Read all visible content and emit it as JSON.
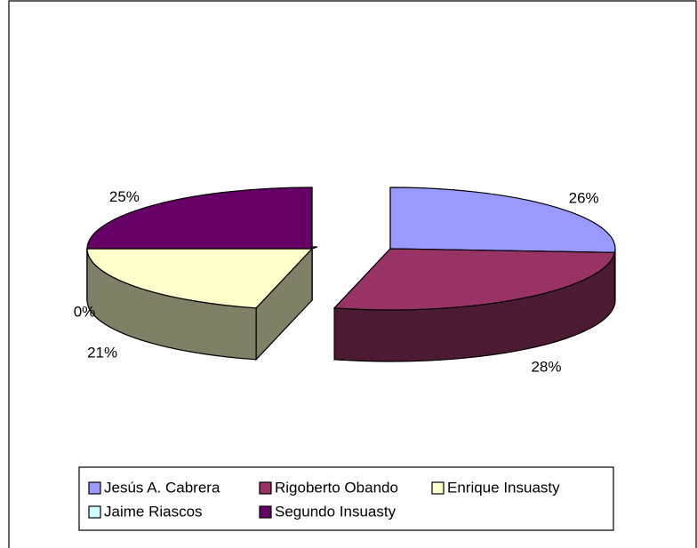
{
  "chart_data": {
    "type": "pie",
    "style": "3d-exploded",
    "legend_position": "bottom",
    "slices": [
      {
        "name": "Jesús A. Cabrera",
        "value": 26,
        "label": "26%",
        "color": "#9999FF"
      },
      {
        "name": "Rigoberto Obando",
        "value": 28,
        "label": "28%",
        "color": "#993366"
      },
      {
        "name": "Enrique Insuasty",
        "value": 21,
        "label": "21%",
        "color": "#FFFFCC"
      },
      {
        "name": "Jaime Riascos",
        "value": 0,
        "label": "0%",
        "color": "#CCFFFF"
      },
      {
        "name": "Segundo Insuasty",
        "value": 25,
        "label": "25%",
        "color": "#660066"
      }
    ]
  }
}
